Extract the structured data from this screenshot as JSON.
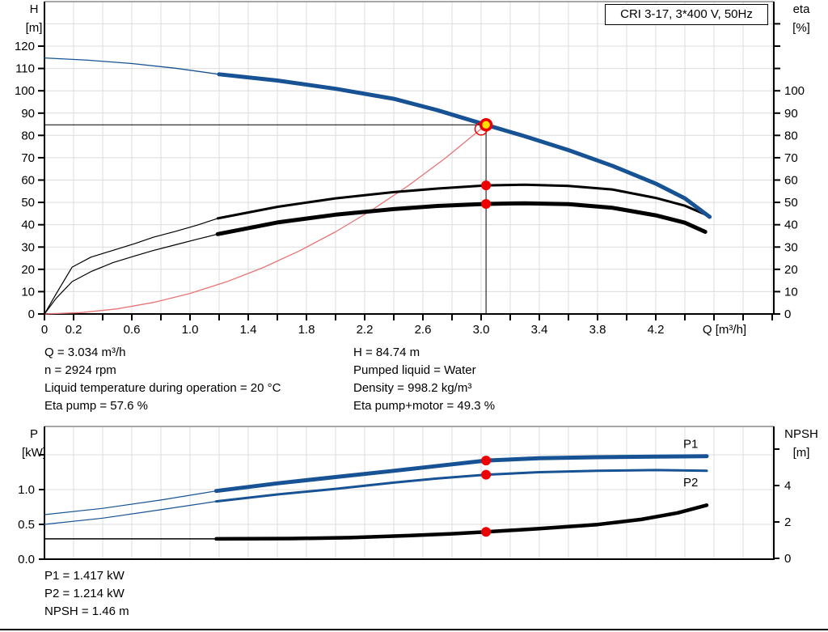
{
  "title_box": {
    "label": "CRI 3-17, 3*400 V, 50Hz"
  },
  "colors": {
    "curve_blue": "#175394",
    "curve_black": "#000000",
    "system_red": "#e87474",
    "dot_red": "#ee0000",
    "marker_yellow": "#ffe100",
    "marker_ring": "#ec0000",
    "grid": "#dcdcdc",
    "frame": "#888888",
    "axis": "#000000"
  },
  "annotations": {
    "left": [
      "Q = 3.034 m³/h",
      "n = 2924 rpm",
      "Liquid temperature during operation = 20 °C",
      "Eta pump = 57.6 %"
    ],
    "right": [
      "H = 84.74 m",
      "Pumped liquid = Water",
      "Density = 998.2 kg/m³",
      "Eta pump+motor = 49.3 %"
    ],
    "bottom": [
      "P1 = 1.417 kW",
      "P2 = 1.214 kW",
      "NPSH = 1.46 m"
    ]
  },
  "chart_data": [
    {
      "type": "line",
      "name": "qh-eta-chart",
      "title": "CRI 3-17, 3*400 V, 50Hz",
      "x_axis": {
        "label": "Q [m³/h]",
        "min": 0,
        "max": 5.01,
        "tick_step": 0.2,
        "labeled_ticks": [
          "0",
          "0.2",
          "0.6",
          "1.0",
          "1.4",
          "1.8",
          "2.2",
          "2.6",
          "3.0",
          "3.4",
          "3.8",
          "4.2"
        ]
      },
      "y_left": {
        "label_line1": "H",
        "label_line2": "[m]",
        "min": 0,
        "max": 140,
        "labeled_ticks": [
          "0",
          "10",
          "20",
          "30",
          "40",
          "50",
          "60",
          "70",
          "80",
          "90",
          "100",
          "110",
          "120"
        ],
        "unlabeled_ticks": []
      },
      "y_right": {
        "label_line1": "eta",
        "label_line2": "[%]",
        "min": 0,
        "max": 140,
        "labeled_ticks": [
          "0",
          "10",
          "20",
          "30",
          "40",
          "50",
          "60",
          "70",
          "80",
          "90",
          "100"
        ],
        "unlabeled_ticks": [
          110,
          120,
          130
        ]
      },
      "grid": {
        "x_step": 0.2,
        "y_step": 10,
        "y_max_line": 130
      },
      "series": [
        {
          "name": "system-curve",
          "axis": "left",
          "color_key": "system_red",
          "legend": "",
          "thin": [
            [
              0,
              0
            ],
            [
              0.25,
              0.6
            ],
            [
              0.5,
              2.3
            ],
            [
              0.75,
              5.2
            ],
            [
              1.0,
              9.2
            ],
            [
              1.25,
              14.4
            ],
            [
              1.5,
              20.7
            ],
            [
              1.75,
              28.2
            ],
            [
              2.0,
              36.8
            ],
            [
              2.25,
              46.6
            ],
            [
              2.5,
              57.5
            ],
            [
              2.75,
              69.6
            ],
            [
              3.0,
              82.9
            ]
          ],
          "thick": []
        },
        {
          "name": "eta-pump-curve",
          "axis": "right",
          "color_key": "curve_black",
          "legend": "",
          "thin": [
            [
              0,
              0
            ],
            [
              0.08,
              9
            ],
            [
              0.19,
              21
            ],
            [
              0.32,
              25.5
            ],
            [
              0.47,
              28.5
            ],
            [
              0.62,
              31.5
            ],
            [
              0.75,
              34.4
            ],
            [
              0.9,
              37
            ],
            [
              1.05,
              39.8
            ],
            [
              1.19,
              42.8
            ]
          ],
          "thick": [
            [
              1.19,
              42.8
            ],
            [
              1.6,
              48
            ],
            [
              2.0,
              51.8
            ],
            [
              2.4,
              54.6
            ],
            [
              2.7,
              56.2
            ],
            [
              3.034,
              57.6
            ],
            [
              3.3,
              57.9
            ],
            [
              3.6,
              57.4
            ],
            [
              3.9,
              55.8
            ],
            [
              4.2,
              52
            ],
            [
              4.4,
              48.5
            ],
            [
              4.57,
              43.8
            ]
          ]
        },
        {
          "name": "eta-pump-motor-curve",
          "axis": "right",
          "color_key": "curve_black",
          "legend": "",
          "thin": [
            [
              0,
              0
            ],
            [
              0.08,
              7
            ],
            [
              0.19,
              14.5
            ],
            [
              0.32,
              19
            ],
            [
              0.47,
              23
            ],
            [
              0.62,
              26
            ],
            [
              0.75,
              28.5
            ],
            [
              0.9,
              31
            ],
            [
              1.05,
              33.5
            ],
            [
              1.19,
              35.8
            ]
          ],
          "thick": [
            [
              1.19,
              35.8
            ],
            [
              1.6,
              41
            ],
            [
              2.0,
              44.5
            ],
            [
              2.4,
              47
            ],
            [
              2.7,
              48.4
            ],
            [
              3.034,
              49.3
            ],
            [
              3.3,
              49.6
            ],
            [
              3.6,
              49.2
            ],
            [
              3.9,
              47.6
            ],
            [
              4.2,
              44.2
            ],
            [
              4.4,
              40.9
            ],
            [
              4.54,
              36.8
            ]
          ]
        },
        {
          "name": "head-curve",
          "axis": "left",
          "color_key": "curve_blue",
          "legend": "",
          "thin": [
            [
              0,
              114.7
            ],
            [
              0.3,
              113.7
            ],
            [
              0.6,
              112.2
            ],
            [
              0.9,
              110.1
            ],
            [
              1.2,
              107.4
            ]
          ],
          "thick": [
            [
              1.2,
              107.4
            ],
            [
              1.6,
              104.6
            ],
            [
              2.0,
              100.9
            ],
            [
              2.4,
              96.4
            ],
            [
              2.7,
              91.3
            ],
            [
              3.034,
              84.74
            ],
            [
              3.3,
              79.6
            ],
            [
              3.6,
              73.4
            ],
            [
              3.9,
              66.4
            ],
            [
              4.2,
              58.4
            ],
            [
              4.4,
              51.8
            ],
            [
              4.57,
              43.5
            ]
          ]
        }
      ],
      "markers": {
        "duty_point": {
          "q": 3.034,
          "value": 84.74
        },
        "requested_point": {
          "q": 3.0,
          "value": 82.9
        },
        "eta_dots": [
          {
            "q": 3.034,
            "value": 57.6
          },
          {
            "q": 3.034,
            "value": 49.3
          }
        ],
        "crosshair": true
      }
    },
    {
      "type": "line",
      "name": "power-npsh-chart",
      "title": "",
      "x_axis": {
        "label": "",
        "min": 0,
        "max": 5.01,
        "tick_step": 0.2,
        "labeled_ticks": []
      },
      "y_left": {
        "label_line1": "P",
        "label_line2": "[kW]",
        "min": 0,
        "max": 1.9,
        "labeled_ticks": [
          "0.0",
          "0.5",
          "1.0"
        ],
        "unlabeled_ticks": [
          1.5
        ]
      },
      "y_right": {
        "label_line1": "NPSH",
        "label_line2": "[m]",
        "min": 0,
        "max": 7.3,
        "labeled_ticks": [
          "0",
          "2",
          "4"
        ],
        "unlabeled_ticks": [
          6
        ]
      },
      "grid": {
        "x_step": 0.2,
        "y_step": 0.5,
        "y_max_line": 1.5
      },
      "series": [
        {
          "name": "npsh-curve",
          "axis": "right",
          "color_key": "curve_black",
          "legend": "",
          "thin": [
            [
              0,
              1.07
            ],
            [
              0.6,
              1.07
            ],
            [
              1.18,
              1.07
            ]
          ],
          "thick": [
            [
              1.18,
              1.07
            ],
            [
              1.7,
              1.09
            ],
            [
              2.1,
              1.14
            ],
            [
              2.5,
              1.25
            ],
            [
              2.8,
              1.35
            ],
            [
              3.034,
              1.46
            ],
            [
              3.4,
              1.63
            ],
            [
              3.8,
              1.86
            ],
            [
              4.1,
              2.14
            ],
            [
              4.35,
              2.5
            ],
            [
              4.55,
              2.92
            ]
          ]
        },
        {
          "name": "p2-curve",
          "axis": "left",
          "color_key": "curve_blue",
          "legend": "P2",
          "thin": [
            [
              0,
              0.5
            ],
            [
              0.4,
              0.59
            ],
            [
              0.8,
              0.71
            ],
            [
              1.18,
              0.83
            ]
          ],
          "thick": [
            [
              1.18,
              0.83
            ],
            [
              1.6,
              0.93
            ],
            [
              2.0,
              1.01
            ],
            [
              2.4,
              1.1
            ],
            [
              2.7,
              1.16
            ],
            [
              3.034,
              1.214
            ],
            [
              3.4,
              1.25
            ],
            [
              3.8,
              1.27
            ],
            [
              4.2,
              1.28
            ],
            [
              4.55,
              1.27
            ]
          ]
        },
        {
          "name": "p1-curve",
          "axis": "left",
          "color_key": "curve_blue",
          "legend": "P1",
          "thin": [
            [
              0,
              0.64
            ],
            [
              0.4,
              0.73
            ],
            [
              0.8,
              0.85
            ],
            [
              1.18,
              0.98
            ]
          ],
          "thick": [
            [
              1.18,
              0.98
            ],
            [
              1.6,
              1.09
            ],
            [
              2.0,
              1.18
            ],
            [
              2.4,
              1.27
            ],
            [
              2.7,
              1.34
            ],
            [
              3.034,
              1.417
            ],
            [
              3.4,
              1.45
            ],
            [
              3.8,
              1.465
            ],
            [
              4.2,
              1.475
            ],
            [
              4.55,
              1.48
            ]
          ]
        }
      ],
      "markers": {
        "dots_left": [
          {
            "q": 3.034,
            "value": 1.417
          },
          {
            "q": 3.034,
            "value": 1.214
          }
        ],
        "dots_right": [
          {
            "q": 3.034,
            "value": 1.46
          }
        ]
      }
    }
  ]
}
